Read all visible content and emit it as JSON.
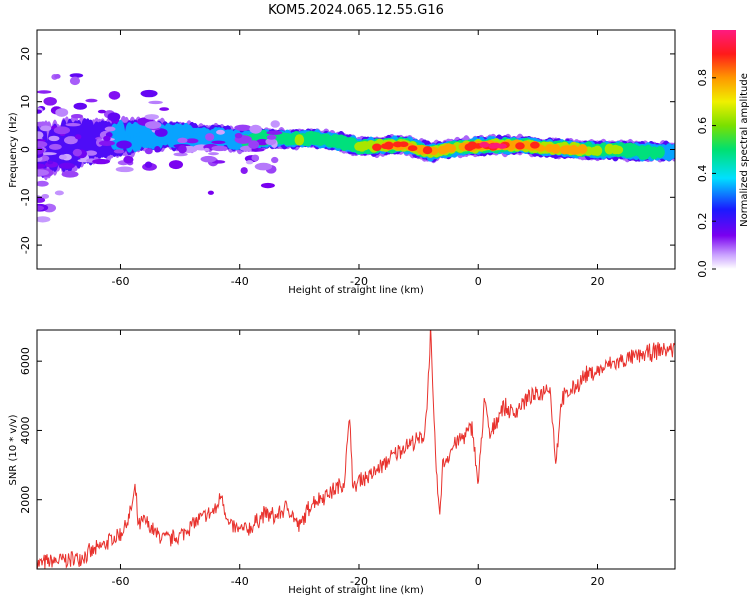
{
  "figure_title": "KOM5.2024.065.12.55.G16",
  "chart_data": [
    {
      "type": "heatmap",
      "title": "",
      "xlabel": "Height of straight line (km)",
      "ylabel": "Frequency (Hz)",
      "xlim": [
        -74,
        33
      ],
      "ylim": [
        -25,
        25
      ],
      "xticks": [
        -60,
        -40,
        -20,
        0,
        20
      ],
      "yticks": [
        -20,
        -10,
        0,
        10,
        20
      ],
      "xtick_labels": [
        "-60",
        "-40",
        "-20",
        "0",
        "20"
      ],
      "ytick_labels": [
        "-20",
        "-10",
        "0",
        "10",
        "20"
      ],
      "colorbar": {
        "label": "Normalized spectral amplitude",
        "range": [
          0,
          1
        ],
        "ticks": [
          0.0,
          0.2,
          0.4,
          0.6,
          0.8
        ],
        "tick_labels": [
          "0.0",
          "0.2",
          "0.4",
          "0.6",
          "0.8"
        ],
        "colormap": "rainbow (white-purple-blue-cyan-green-yellow-orange-red-magenta)"
      },
      "ridge": {
        "x": [
          -72,
          -68,
          -64,
          -60,
          -56,
          -52,
          -48,
          -44,
          -40,
          -36,
          -32,
          -28,
          -24,
          -20,
          -16,
          -12,
          -8,
          -4,
          0,
          4,
          8,
          12,
          16,
          20,
          24,
          28,
          31
        ],
        "freq": [
          0,
          1,
          2,
          2.5,
          3,
          3,
          2.7,
          2.5,
          2,
          2.2,
          2.3,
          2.3,
          1.8,
          0.6,
          0.8,
          0.9,
          -0.6,
          0.3,
          0.7,
          0.9,
          0.9,
          0.2,
          0.1,
          -0.2,
          -0.1,
          -0.5,
          -0.4
        ],
        "amplitude": [
          0.15,
          0.2,
          0.25,
          0.3,
          0.35,
          0.35,
          0.35,
          0.35,
          0.4,
          0.6,
          0.55,
          0.55,
          0.5,
          0.6,
          0.8,
          0.85,
          0.75,
          0.7,
          0.85,
          0.85,
          0.8,
          0.7,
          0.75,
          0.6,
          0.55,
          0.5,
          0.4
        ],
        "width_hz": [
          6,
          5.5,
          4.5,
          4,
          3.5,
          3,
          3,
          2.5,
          2.5,
          2.2,
          2,
          2,
          2,
          2,
          2,
          2,
          2,
          2,
          2,
          2,
          2,
          2,
          2,
          2,
          2,
          2,
          2
        ]
      },
      "grid": false
    },
    {
      "type": "line",
      "title": "",
      "xlabel": "Height of straight line (km)",
      "ylabel": "SNR (10 * v/v)",
      "xlim": [
        -74,
        33
      ],
      "ylim": [
        0,
        6900
      ],
      "xticks": [
        -60,
        -40,
        -20,
        0,
        20
      ],
      "yticks": [
        2000,
        4000,
        6000
      ],
      "xtick_labels": [
        "-60",
        "-40",
        "-20",
        "0",
        "20"
      ],
      "ytick_labels": [
        "2000",
        "4000",
        "6000"
      ],
      "series": [
        {
          "color": "#e8322d",
          "x": [
            -74,
            -72,
            -70,
            -68,
            -66,
            -64,
            -62,
            -60,
            -58.5,
            -57.5,
            -57,
            -56,
            -54,
            -52,
            -50,
            -48,
            -46,
            -44,
            -43,
            -42,
            -40,
            -38,
            -36,
            -34,
            -32,
            -30,
            -28,
            -26,
            -24,
            -22.5,
            -21.5,
            -21,
            -20,
            -18,
            -16,
            -14,
            -12,
            -10,
            -9,
            -8.5,
            -8,
            -7.5,
            -7,
            -6.5,
            -6,
            -4,
            -2,
            -1,
            0,
            1,
            2,
            4,
            6,
            8,
            10,
            12,
            13,
            14,
            16,
            18,
            20,
            22,
            24,
            26,
            28,
            30,
            32
          ],
          "y": [
            150,
            200,
            250,
            280,
            400,
            550,
            800,
            1000,
            1500,
            2300,
            1200,
            1400,
            1000,
            850,
            950,
            1300,
            1500,
            1700,
            2200,
            1300,
            1100,
            1200,
            1600,
            1500,
            1800,
            1200,
            1900,
            2100,
            2300,
            2500,
            4450,
            2200,
            2600,
            2700,
            3000,
            3300,
            3600,
            3700,
            3900,
            5000,
            6900,
            4500,
            2800,
            1400,
            3000,
            3600,
            3900,
            4100,
            2400,
            4900,
            3800,
            4700,
            4500,
            4900,
            5000,
            5300,
            3100,
            4900,
            5200,
            5600,
            5700,
            5900,
            6000,
            6100,
            6200,
            6300,
            6350
          ],
          "noise_amplitude": 250
        }
      ],
      "grid": false
    }
  ]
}
